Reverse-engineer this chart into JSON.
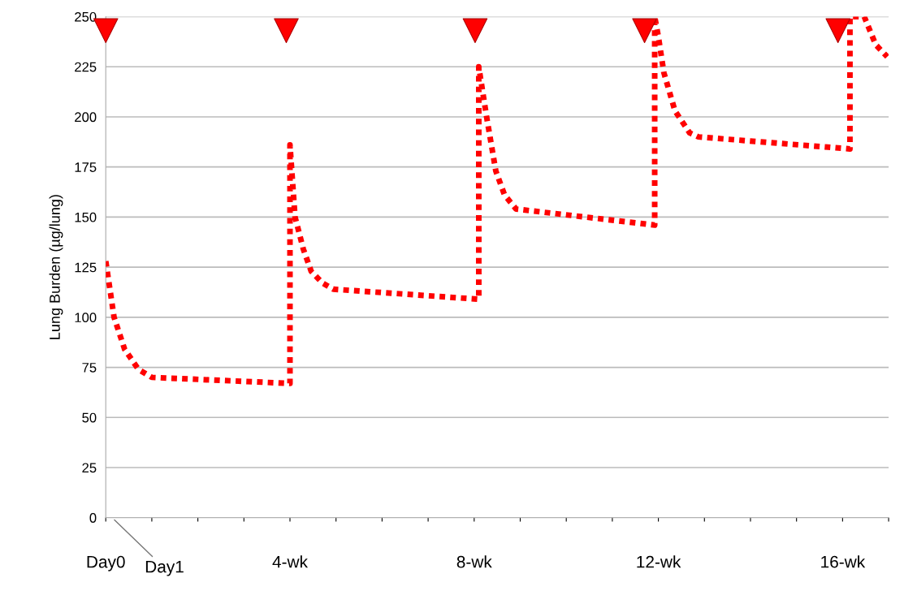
{
  "chart_data": {
    "type": "line",
    "ylabel": "Lung Burden (µg/lung)",
    "xlim": [
      0,
      17
    ],
    "ylim": [
      0,
      250
    ],
    "yticks": [
      0,
      25,
      50,
      75,
      100,
      125,
      150,
      175,
      200,
      225,
      250
    ],
    "xticks": [
      {
        "value": 0,
        "label": "Day0"
      },
      {
        "value": 1,
        "label": null
      },
      {
        "value": 2,
        "label": null
      },
      {
        "value": 3,
        "label": null
      },
      {
        "value": 4,
        "label": "4-wk"
      },
      {
        "value": 5,
        "label": null
      },
      {
        "value": 6,
        "label": null
      },
      {
        "value": 7,
        "label": null
      },
      {
        "value": 8,
        "label": "8-wk"
      },
      {
        "value": 9,
        "label": null
      },
      {
        "value": 10,
        "label": null
      },
      {
        "value": 11,
        "label": null
      },
      {
        "value": 12,
        "label": "12-wk"
      },
      {
        "value": 13,
        "label": null
      },
      {
        "value": 14,
        "label": null
      },
      {
        "value": 15,
        "label": null
      },
      {
        "value": 16,
        "label": "16-wk"
      },
      {
        "value": 17,
        "label": null
      }
    ],
    "grid": "y",
    "legend": false,
    "line_style": "dotted",
    "marker": "none",
    "annotations": [
      "Day1"
    ],
    "series": [
      {
        "color": "#ff0000",
        "x": [
          0,
          0.18,
          0.41,
          0.71,
          1.0,
          4.0,
          4.0,
          4.11,
          4.29,
          4.46,
          4.71,
          4.94,
          8.1,
          8.1,
          8.27,
          8.47,
          8.66,
          8.91,
          11.92,
          11.92,
          12.0,
          12.12,
          12.36,
          12.68,
          12.87,
          16.16,
          16.16,
          16.47,
          16.72,
          16.97
        ],
        "values": [
          128,
          100,
          84,
          74,
          70,
          67,
          186,
          150,
          134,
          123,
          117,
          114,
          109,
          225,
          200,
          173,
          161,
          154,
          146,
          250,
          240,
          222,
          203,
          192,
          190,
          184,
          250,
          250,
          236,
          230
        ]
      },
      {
        "type": "scatter",
        "marker": "triangle",
        "color": "#ff0000",
        "x": [
          0,
          3.92,
          8.02,
          11.7,
          15.9
        ],
        "values": [
          243,
          243,
          243,
          243,
          243
        ]
      }
    ]
  }
}
